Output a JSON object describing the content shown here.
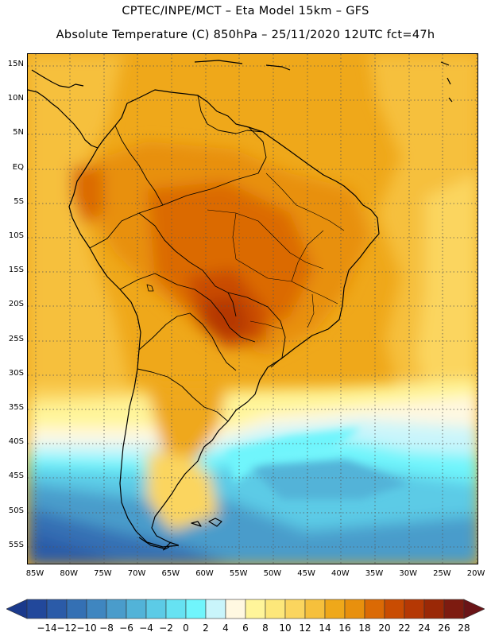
{
  "title": {
    "line1": "CPTEC/INPE/MCT –  Eta Model 15km – GFS",
    "line2": "Absolute Temperature (C) 850hPa – 25/11/2020 12UTC fct=47h"
  },
  "lat_labels": [
    "15N",
    "10N",
    "5N",
    "EQ",
    "5S",
    "10S",
    "15S",
    "20S",
    "25S",
    "30S",
    "35S",
    "40S",
    "45S",
    "50S",
    "55S"
  ],
  "lon_labels": [
    "85W",
    "80W",
    "75W",
    "70W",
    "65W",
    "60W",
    "55W",
    "50W",
    "45W",
    "40W",
    "35W",
    "30W",
    "25W",
    "20W"
  ],
  "colorbar": {
    "labels": [
      "-14",
      "-12",
      "-10",
      "-8",
      "-6",
      "-4",
      "-2",
      "0",
      "2",
      "4",
      "6",
      "8",
      "10",
      "12",
      "14",
      "16",
      "18",
      "20",
      "22",
      "24",
      "26",
      "28"
    ],
    "colors": [
      "#1b3a8c",
      "#22489b",
      "#2b5ba8",
      "#3470b4",
      "#3f86c0",
      "#4a9ccb",
      "#52b3d8",
      "#5ccbe6",
      "#66e2f2",
      "#70f5fc",
      "#c9f5fb",
      "#fff8e1",
      "#fff59a",
      "#fde77a",
      "#fbd55e",
      "#f6c03c",
      "#efa81a",
      "#e8900d",
      "#db6a05",
      "#c94c02",
      "#b53804",
      "#9a2806",
      "#7d1b10",
      "#6a1417"
    ]
  }
}
